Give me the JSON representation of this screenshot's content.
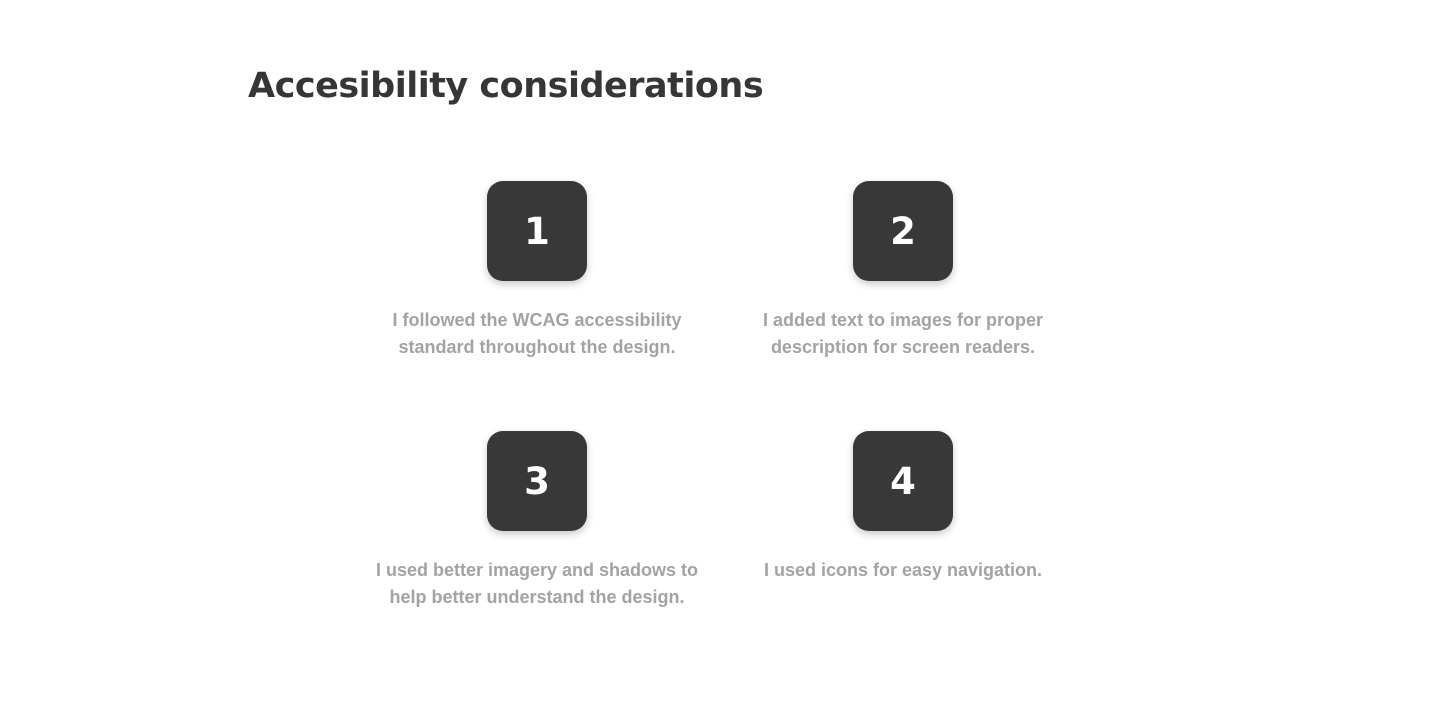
{
  "page": {
    "title": "Accesibility considerations"
  },
  "items": [
    {
      "number": "1",
      "text": "I followed the WCAG accessibility standard throughout the design."
    },
    {
      "number": "2",
      "text": "I added text to images for proper description for screen readers."
    },
    {
      "number": "3",
      "text": "I used better imagery and shadows to help better understand the design."
    },
    {
      "number": "4",
      "text": "I used icons for easy navigation."
    }
  ],
  "colors": {
    "title": "#363636",
    "box": "#383838",
    "number": "#ffffff",
    "body_text": "#a3a3a3",
    "background": "#ffffff"
  }
}
